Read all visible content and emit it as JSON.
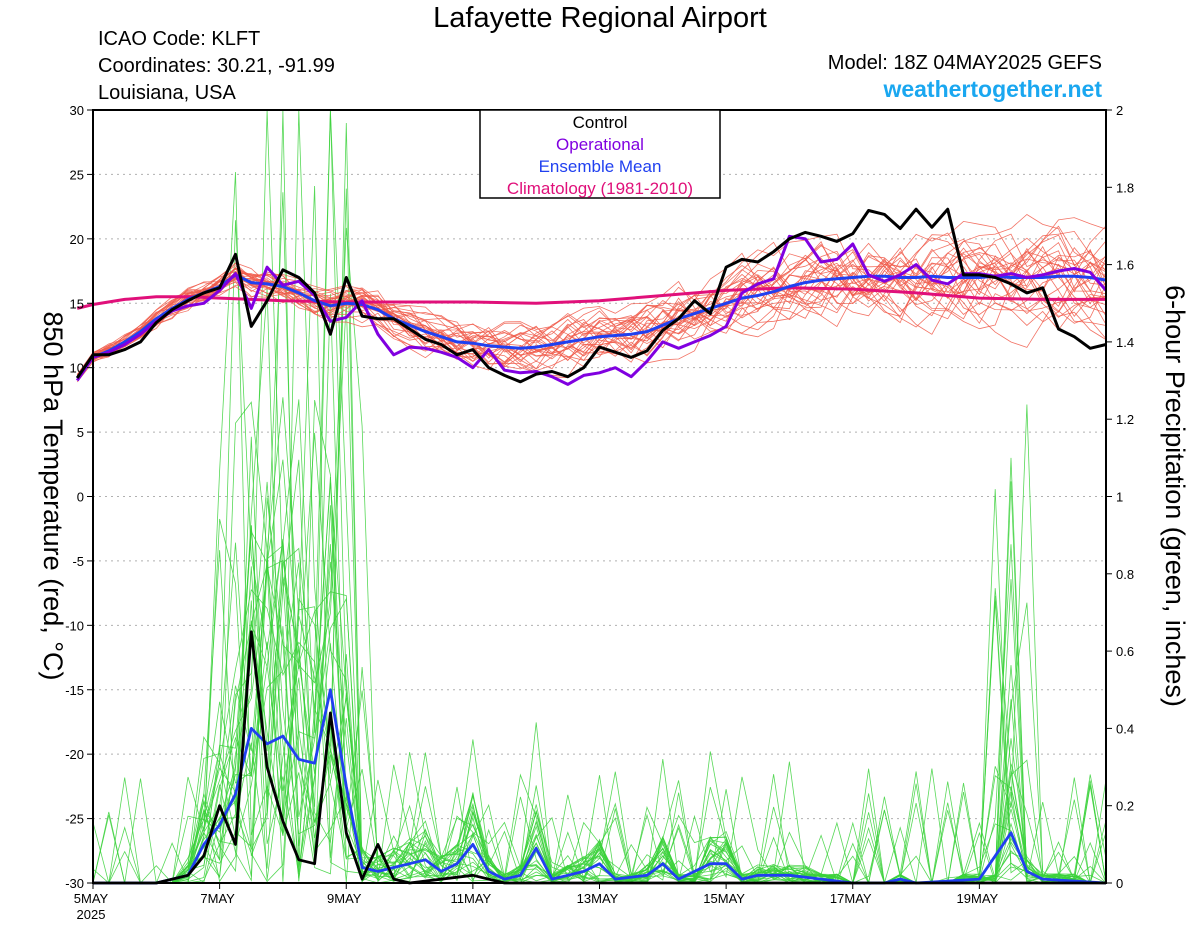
{
  "header": {
    "title": "Lafayette Regional Airport",
    "icao": "ICAO Code: KLFT",
    "coords": "Coordinates: 30.21, -91.99",
    "location": "Louisiana, USA",
    "model": "Model: 18Z 04MAY2025 GEFS",
    "site": "weathertogether.net"
  },
  "chart_data": {
    "type": "line",
    "ylabel": "850 hPa Temperature (red, °C)",
    "y2label": "6-hour Precipitation (green, inches)",
    "xlim_days": [
      5,
      21
    ],
    "ylim": [
      -30,
      30
    ],
    "y2lim": [
      0,
      2
    ],
    "x_ticks": [
      {
        "day": 5,
        "label": "5MAY",
        "sub": "2025"
      },
      {
        "day": 7,
        "label": "7MAY",
        "sub": ""
      },
      {
        "day": 9,
        "label": "9MAY",
        "sub": ""
      },
      {
        "day": 11,
        "label": "11MAY",
        "sub": ""
      },
      {
        "day": 13,
        "label": "13MAY",
        "sub": ""
      },
      {
        "day": 15,
        "label": "15MAY",
        "sub": ""
      },
      {
        "day": 17,
        "label": "17MAY",
        "sub": ""
      },
      {
        "day": 19,
        "label": "19MAY",
        "sub": ""
      }
    ],
    "y_ticks": [
      30,
      25,
      20,
      15,
      10,
      5,
      0,
      -5,
      -10,
      -15,
      -20,
      -25,
      -30
    ],
    "y2_ticks": [
      2,
      1.8,
      1.6,
      1.4,
      1.2,
      1,
      0.8,
      0.6,
      0.4,
      0.2,
      0
    ],
    "grid": "dotted horizontal",
    "legend": {
      "position": "top-center",
      "items": [
        {
          "label": "Control",
          "color": "#000000"
        },
        {
          "label": "Operational",
          "color": "#8000e0"
        },
        {
          "label": "Ensemble Mean",
          "color": "#2040f0"
        },
        {
          "label": "Climatology (1981-2010)",
          "color": "#e0107a"
        }
      ]
    },
    "colors": {
      "control": "#000000",
      "operational": "#8000e0",
      "ens_mean": "#2040f0",
      "climatology": "#e0107a",
      "members_temp": "#f05a4a",
      "members_precip": "#3ad13a"
    },
    "temperature": {
      "control": [
        [
          4.75,
          9.2
        ],
        [
          5,
          11
        ],
        [
          5.25,
          11
        ],
        [
          5.5,
          11.4
        ],
        [
          5.75,
          12
        ],
        [
          6,
          13.5
        ],
        [
          6.25,
          14.5
        ],
        [
          6.5,
          15.2
        ],
        [
          6.75,
          15.8
        ],
        [
          7,
          16.2
        ],
        [
          7.25,
          18.8
        ],
        [
          7.5,
          13.2
        ],
        [
          7.75,
          15.2
        ],
        [
          8,
          17.6
        ],
        [
          8.25,
          17
        ],
        [
          8.5,
          15.8
        ],
        [
          8.75,
          12.6
        ],
        [
          9,
          17
        ],
        [
          9.25,
          14
        ],
        [
          9.5,
          13.8
        ],
        [
          9.75,
          13.8
        ],
        [
          10,
          13
        ],
        [
          10.25,
          12.2
        ],
        [
          10.5,
          11.8
        ],
        [
          10.75,
          11
        ],
        [
          11,
          11.4
        ],
        [
          11.25,
          10
        ],
        [
          11.5,
          9.4
        ],
        [
          11.75,
          8.9
        ],
        [
          12,
          9.5
        ],
        [
          12.25,
          9.7
        ],
        [
          12.5,
          9.3
        ],
        [
          12.75,
          10
        ],
        [
          13,
          11.6
        ],
        [
          13.25,
          11.2
        ],
        [
          13.5,
          10.8
        ],
        [
          13.75,
          11.3
        ],
        [
          14,
          12.9
        ],
        [
          14.25,
          13.8
        ],
        [
          14.5,
          15.2
        ],
        [
          14.75,
          14.2
        ],
        [
          15,
          17.8
        ],
        [
          15.25,
          18.4
        ],
        [
          15.5,
          18.2
        ],
        [
          15.75,
          19
        ],
        [
          16,
          20
        ],
        [
          16.25,
          20.5
        ],
        [
          16.5,
          20.2
        ],
        [
          16.75,
          19.8
        ],
        [
          17,
          20.4
        ],
        [
          17.25,
          22.2
        ],
        [
          17.5,
          21.9
        ],
        [
          17.75,
          20.8
        ],
        [
          18,
          22.3
        ],
        [
          18.25,
          20.9
        ],
        [
          18.5,
          22.3
        ],
        [
          18.75,
          17.2
        ],
        [
          19,
          17.2
        ],
        [
          19.25,
          17
        ],
        [
          19.5,
          16.5
        ],
        [
          19.75,
          15.8
        ],
        [
          20,
          16.2
        ],
        [
          20.25,
          13
        ],
        [
          20.5,
          12.4
        ],
        [
          20.75,
          11.5
        ],
        [
          21,
          11.8
        ]
      ],
      "operational": [
        [
          4.75,
          9
        ],
        [
          5,
          10.8
        ],
        [
          5.25,
          11.2
        ],
        [
          5.5,
          11.8
        ],
        [
          5.75,
          12.6
        ],
        [
          6,
          13.6
        ],
        [
          6.25,
          14.4
        ],
        [
          6.5,
          14.8
        ],
        [
          6.75,
          15
        ],
        [
          7,
          16
        ],
        [
          7.25,
          17.3
        ],
        [
          7.5,
          14.6
        ],
        [
          7.75,
          17.8
        ],
        [
          8,
          16.4
        ],
        [
          8.25,
          16.7
        ],
        [
          8.5,
          15.6
        ],
        [
          8.75,
          13.6
        ],
        [
          9,
          13.9
        ],
        [
          9.25,
          15.2
        ],
        [
          9.5,
          12.6
        ],
        [
          9.75,
          11
        ],
        [
          10,
          11.6
        ],
        [
          10.25,
          11.5
        ],
        [
          10.5,
          11.2
        ],
        [
          10.75,
          10.8
        ],
        [
          11,
          10
        ],
        [
          11.25,
          11.4
        ],
        [
          11.5,
          9.8
        ],
        [
          11.75,
          9.6
        ],
        [
          12,
          9.7
        ],
        [
          12.25,
          9.3
        ],
        [
          12.5,
          8.7
        ],
        [
          12.75,
          9.4
        ],
        [
          13,
          9.6
        ],
        [
          13.25,
          10
        ],
        [
          13.5,
          9.3
        ],
        [
          13.75,
          10.5
        ],
        [
          14,
          12
        ],
        [
          14.25,
          11.5
        ],
        [
          14.5,
          12
        ],
        [
          14.75,
          12.5
        ],
        [
          15,
          13.2
        ],
        [
          15.25,
          15.8
        ],
        [
          15.5,
          16.5
        ],
        [
          15.75,
          16.9
        ],
        [
          16,
          20.2
        ],
        [
          16.25,
          20
        ],
        [
          16.5,
          18.2
        ],
        [
          16.75,
          18.4
        ],
        [
          17,
          19.6
        ],
        [
          17.25,
          17.2
        ],
        [
          17.5,
          16.7
        ],
        [
          17.75,
          17.2
        ],
        [
          18,
          18
        ],
        [
          18.25,
          16.8
        ],
        [
          18.5,
          16.5
        ],
        [
          18.75,
          17.3
        ],
        [
          19,
          17.3
        ],
        [
          19.25,
          17.1
        ],
        [
          19.5,
          17.3
        ],
        [
          19.75,
          17
        ],
        [
          20,
          17.2
        ],
        [
          20.25,
          17.5
        ],
        [
          20.5,
          17.7
        ],
        [
          20.75,
          17.4
        ],
        [
          21,
          16
        ]
      ],
      "ens_mean": [
        [
          4.75,
          9.2
        ],
        [
          5,
          10.8
        ],
        [
          5.25,
          11.3
        ],
        [
          5.5,
          12
        ],
        [
          5.75,
          12.8
        ],
        [
          6,
          13.8
        ],
        [
          6.25,
          14.6
        ],
        [
          6.5,
          15.3
        ],
        [
          6.75,
          15.8
        ],
        [
          7,
          16.3
        ],
        [
          7.25,
          17.2
        ],
        [
          7.5,
          16.6
        ],
        [
          7.75,
          16.5
        ],
        [
          8,
          16.3
        ],
        [
          8.25,
          15.8
        ],
        [
          8.5,
          15.2
        ],
        [
          8.75,
          14.8
        ],
        [
          9,
          15
        ],
        [
          9.25,
          14.9
        ],
        [
          9.5,
          14.5
        ],
        [
          9.75,
          13.8
        ],
        [
          10,
          13.3
        ],
        [
          10.25,
          12.8
        ],
        [
          10.5,
          12.4
        ],
        [
          10.75,
          12
        ],
        [
          11,
          11.9
        ],
        [
          11.25,
          11.7
        ],
        [
          11.5,
          11.6
        ],
        [
          11.75,
          11.5
        ],
        [
          12,
          11.6
        ],
        [
          12.25,
          11.8
        ],
        [
          12.5,
          12
        ],
        [
          12.75,
          12.2
        ],
        [
          13,
          12.4
        ],
        [
          13.25,
          12.5
        ],
        [
          13.5,
          12.6
        ],
        [
          13.75,
          12.8
        ],
        [
          14,
          13.3
        ],
        [
          14.25,
          13.8
        ],
        [
          14.5,
          14.2
        ],
        [
          14.75,
          14.6
        ],
        [
          15,
          15
        ],
        [
          15.25,
          15.4
        ],
        [
          15.5,
          15.6
        ],
        [
          15.75,
          15.9
        ],
        [
          16,
          16.3
        ],
        [
          16.25,
          16.6
        ],
        [
          16.5,
          16.8
        ],
        [
          16.75,
          16.9
        ],
        [
          17,
          17
        ],
        [
          17.25,
          17.1
        ],
        [
          17.5,
          17.1
        ],
        [
          17.75,
          17
        ],
        [
          18,
          17
        ],
        [
          18.25,
          17.1
        ],
        [
          18.5,
          17
        ],
        [
          18.75,
          17
        ],
        [
          19,
          17
        ],
        [
          19.25,
          17.1
        ],
        [
          19.5,
          17
        ],
        [
          19.75,
          17
        ],
        [
          20,
          17
        ],
        [
          20.25,
          17.1
        ],
        [
          20.5,
          17.1
        ],
        [
          20.75,
          17
        ],
        [
          21,
          16.8
        ]
      ],
      "climatology": [
        [
          4.75,
          14.6
        ],
        [
          5,
          14.9
        ],
        [
          5.5,
          15.3
        ],
        [
          6,
          15.5
        ],
        [
          6.5,
          15.5
        ],
        [
          7,
          15.4
        ],
        [
          7.5,
          15.3
        ],
        [
          8,
          15.2
        ],
        [
          9,
          15.1
        ],
        [
          10,
          15.1
        ],
        [
          11,
          15.1
        ],
        [
          12,
          15
        ],
        [
          13,
          15.2
        ],
        [
          14,
          15.6
        ],
        [
          15,
          16
        ],
        [
          16,
          16.2
        ],
        [
          17,
          16.1
        ],
        [
          18,
          15.8
        ],
        [
          19,
          15.4
        ],
        [
          20,
          15.3
        ],
        [
          21,
          15.3
        ]
      ]
    },
    "precipitation": {
      "control": [
        [
          5,
          0
        ],
        [
          6,
          0
        ],
        [
          6.5,
          0.02
        ],
        [
          6.75,
          0.07
        ],
        [
          7,
          0.2
        ],
        [
          7.25,
          0.1
        ],
        [
          7.5,
          0.65
        ],
        [
          7.75,
          0.3
        ],
        [
          8,
          0.16
        ],
        [
          8.25,
          0.06
        ],
        [
          8.5,
          0.05
        ],
        [
          8.75,
          0.44
        ],
        [
          9,
          0.13
        ],
        [
          9.25,
          0.01
        ],
        [
          9.5,
          0.1
        ],
        [
          9.75,
          0.01
        ],
        [
          10,
          0
        ],
        [
          11,
          0.02
        ],
        [
          11.5,
          0
        ],
        [
          21,
          0
        ]
      ],
      "ens_mean": [
        [
          5,
          0
        ],
        [
          6,
          0
        ],
        [
          6.5,
          0.02
        ],
        [
          6.75,
          0.1
        ],
        [
          7,
          0.15
        ],
        [
          7.25,
          0.23
        ],
        [
          7.5,
          0.4
        ],
        [
          7.75,
          0.36
        ],
        [
          8,
          0.38
        ],
        [
          8.25,
          0.32
        ],
        [
          8.5,
          0.31
        ],
        [
          8.75,
          0.5
        ],
        [
          9,
          0.25
        ],
        [
          9.25,
          0.04
        ],
        [
          9.5,
          0.03
        ],
        [
          9.75,
          0.04
        ],
        [
          10,
          0.05
        ],
        [
          10.25,
          0.06
        ],
        [
          10.5,
          0.03
        ],
        [
          10.75,
          0.05
        ],
        [
          11,
          0.1
        ],
        [
          11.25,
          0.03
        ],
        [
          11.5,
          0.01
        ],
        [
          11.75,
          0.02
        ],
        [
          12,
          0.09
        ],
        [
          12.25,
          0.01
        ],
        [
          12.5,
          0.02
        ],
        [
          12.75,
          0.03
        ],
        [
          13,
          0.05
        ],
        [
          13.25,
          0.01
        ],
        [
          13.75,
          0.02
        ],
        [
          14,
          0.05
        ],
        [
          14.25,
          0.01
        ],
        [
          14.75,
          0.05
        ],
        [
          15,
          0.05
        ],
        [
          15.25,
          0.01
        ],
        [
          15.5,
          0.02
        ],
        [
          16,
          0.02
        ],
        [
          16.5,
          0.01
        ],
        [
          17,
          0
        ],
        [
          17.5,
          0
        ],
        [
          17.75,
          0.01
        ],
        [
          18,
          0
        ],
        [
          19,
          0.01
        ],
        [
          19.5,
          0.13
        ],
        [
          19.75,
          0.03
        ],
        [
          20,
          0.01
        ],
        [
          21,
          0
        ]
      ]
    }
  }
}
